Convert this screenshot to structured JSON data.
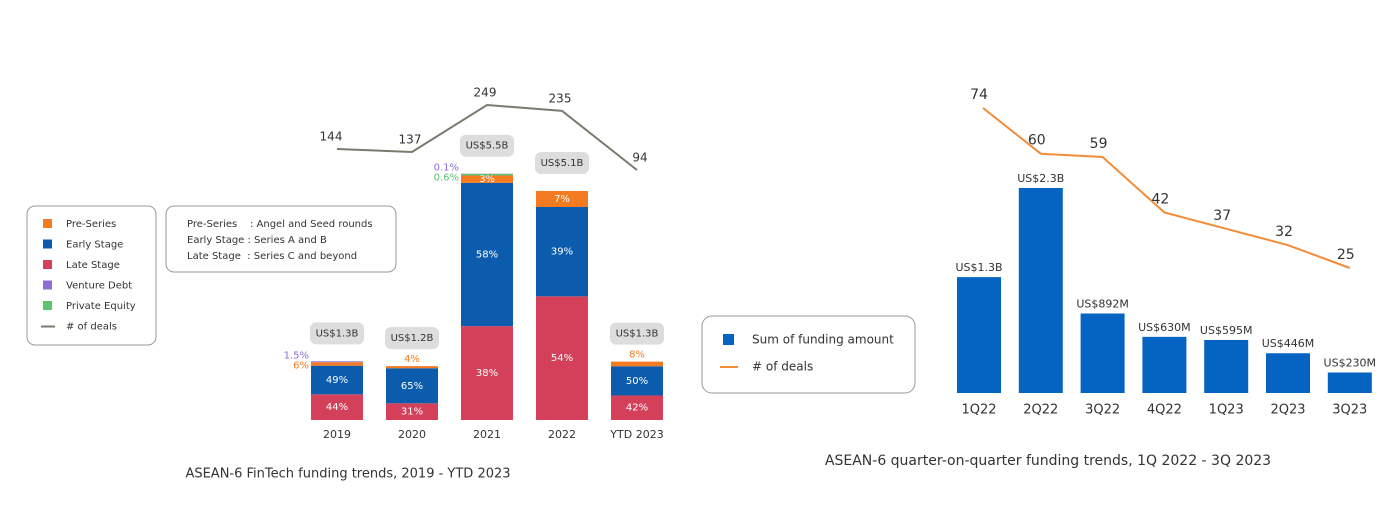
{
  "chart_data": [
    {
      "type": "stacked-bar",
      "caption": "ASEAN-6 FinTech funding trends, 2019 - YTD 2023",
      "categories": [
        "2019",
        "2020",
        "2021",
        "2022",
        "YTD 2023"
      ],
      "series": [
        {
          "name": "Pre-Series",
          "color": "#f47b20",
          "values": [
            6,
            4,
            3,
            7,
            8
          ],
          "value_labels": [
            "6%",
            "4%",
            "3%",
            "7%",
            "8%"
          ]
        },
        {
          "name": "Early Stage",
          "color": "#0b5cad",
          "values": [
            49,
            65,
            58,
            39,
            50
          ],
          "value_labels": [
            "49%",
            "65%",
            "58%",
            "39%",
            "50%"
          ]
        },
        {
          "name": "Late Stage",
          "color": "#d4405a",
          "values": [
            44,
            31,
            38,
            54,
            42
          ],
          "value_labels": [
            "44%",
            "31%",
            "38%",
            "54%",
            "42%"
          ]
        },
        {
          "name": "Venture Debt",
          "color": "#8a6fd6",
          "values": [
            1.5,
            null,
            0.1,
            null,
            null
          ],
          "value_labels": [
            "1.5%",
            null,
            "0.1%",
            null,
            null
          ]
        },
        {
          "name": "Private Equity",
          "color": "#5cc46e",
          "values": [
            null,
            null,
            0.6,
            null,
            null
          ],
          "value_labels": [
            null,
            null,
            "0.6%",
            null,
            null
          ]
        }
      ],
      "totals": {
        "values": [
          1.3,
          1.2,
          5.5,
          5.1,
          1.3
        ],
        "value_labels": [
          "US$1.3B",
          "US$1.2B",
          "US$5.5B",
          "US$5.1B",
          "US$1.3B"
        ]
      },
      "line": {
        "name": "# of deals",
        "color": "#7a7a6e",
        "values": [
          144,
          137,
          249,
          235,
          94
        ]
      },
      "notes": [
        "Pre-Series    : Angel and Seed rounds",
        "Early Stage : Series A and B",
        "Late Stage  : Series C and beyond"
      ]
    },
    {
      "type": "bar-line",
      "caption": "ASEAN-6 quarter-on-quarter funding trends, 1Q 2022 - 3Q 2023",
      "categories": [
        "1Q22",
        "2Q22",
        "3Q22",
        "4Q22",
        "1Q23",
        "2Q23",
        "3Q23"
      ],
      "series": [
        {
          "name": "Sum of funding amount",
          "color": "#0563c1",
          "values": [
            1300,
            2300,
            892,
            630,
            595,
            446,
            230
          ],
          "value_labels": [
            "US$1.3B",
            "US$2.3B",
            "US$892M",
            "US$630M",
            "US$595M",
            "US$446M",
            "US$230M"
          ]
        },
        {
          "name": "# of deals",
          "type": "line",
          "color": "#f28c38",
          "values": [
            74,
            60,
            59,
            42,
            37,
            32,
            25
          ]
        }
      ]
    }
  ]
}
